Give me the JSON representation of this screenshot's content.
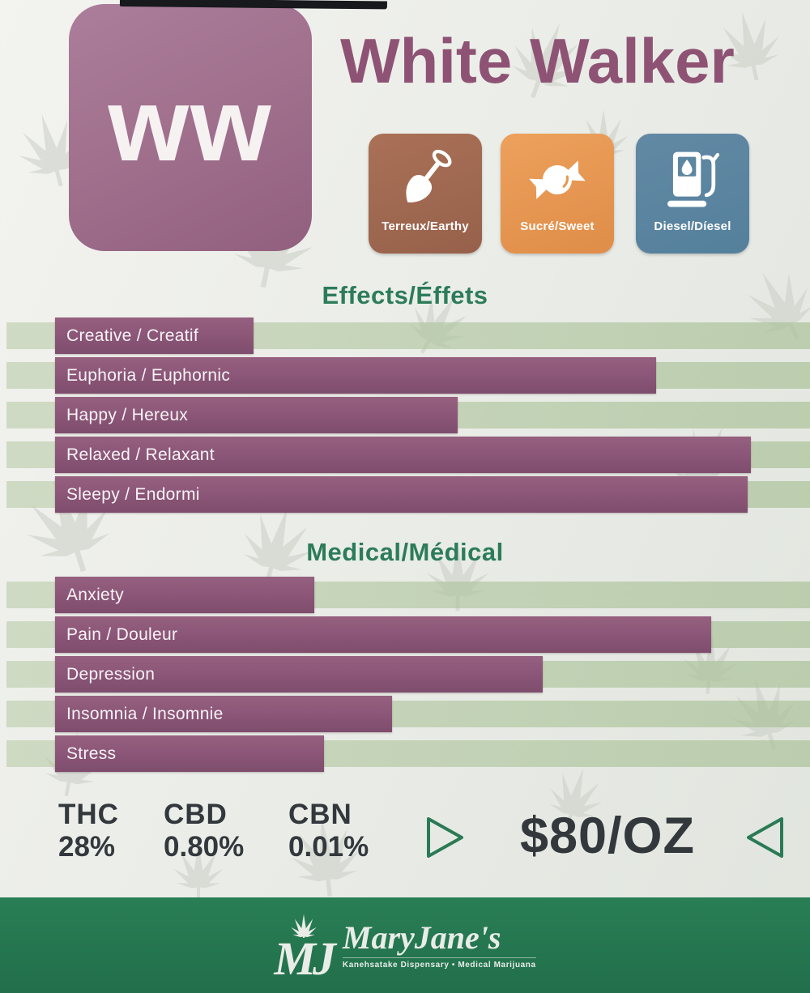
{
  "badge": {
    "initials": "ww"
  },
  "title": "White Walker",
  "flavors": [
    {
      "label": "Terreux/Earthy",
      "icon": "shovel-icon",
      "color": "#a06a52"
    },
    {
      "label": "Sucré/Sweet",
      "icon": "candy-icon",
      "color": "#e8984f"
    },
    {
      "label": "Diesel/Díesel",
      "icon": "fuel-pump-icon",
      "color": "#5c86a1"
    }
  ],
  "sections": {
    "effects": {
      "heading": "Effects/Éffets",
      "bars": [
        {
          "label": "Creative / Creatif",
          "end_pct": 31.3
        },
        {
          "label": "Euphoria / Euphornic",
          "end_pct": 81.0
        },
        {
          "label": "Happy / Hereux",
          "end_pct": 56.5
        },
        {
          "label": "Relaxed / Relaxant",
          "end_pct": 92.7
        },
        {
          "label": "Sleepy / Endormi",
          "end_pct": 92.3
        }
      ]
    },
    "medical": {
      "heading": "Medical/Médical",
      "bars": [
        {
          "label": "Anxiety",
          "end_pct": 38.8
        },
        {
          "label": "Pain / Douleur",
          "end_pct": 87.8
        },
        {
          "label": "Depression",
          "end_pct": 67.0
        },
        {
          "label": "Insomnia / Insomnie",
          "end_pct": 48.4
        },
        {
          "label": "Stress",
          "end_pct": 40.0
        }
      ]
    }
  },
  "cannabinoids": [
    {
      "label": "THC",
      "value": "28%"
    },
    {
      "label": "CBD",
      "value": "0.80%"
    },
    {
      "label": "CBN",
      "value": "0.01%"
    }
  ],
  "price": "$80/OZ",
  "footer": {
    "monogram": "MJ",
    "brand": "MaryJane's",
    "tagline": "Kanehsatake Dispensary • Medical Marijuana"
  },
  "colors": {
    "accent_purple": "#8e5374",
    "bar_purple": "#8a5577",
    "track_green": "#c6d4ba",
    "heading_green": "#2c7c59",
    "footer_green": "#247a51",
    "text_dark": "#33383d",
    "paper": "#ecEEe9"
  },
  "chart_data": [
    {
      "type": "bar",
      "title": "Effects/Éffets",
      "orientation": "horizontal",
      "categories": [
        "Creative / Creatif",
        "Euphoria / Euphornic",
        "Happy / Hereux",
        "Relaxed / Relaxant",
        "Sleepy / Endormi"
      ],
      "values": [
        31,
        81,
        56,
        93,
        92
      ],
      "xlabel": "",
      "ylabel": "",
      "xlim": [
        0,
        100
      ],
      "grid": false,
      "legend": false
    },
    {
      "type": "bar",
      "title": "Medical/Médical",
      "orientation": "horizontal",
      "categories": [
        "Anxiety",
        "Pain / Douleur",
        "Depression",
        "Insomnia / Insomnie",
        "Stress"
      ],
      "values": [
        39,
        88,
        67,
        48,
        40
      ],
      "xlabel": "",
      "ylabel": "",
      "xlim": [
        0,
        100
      ],
      "grid": false,
      "legend": false
    }
  ]
}
